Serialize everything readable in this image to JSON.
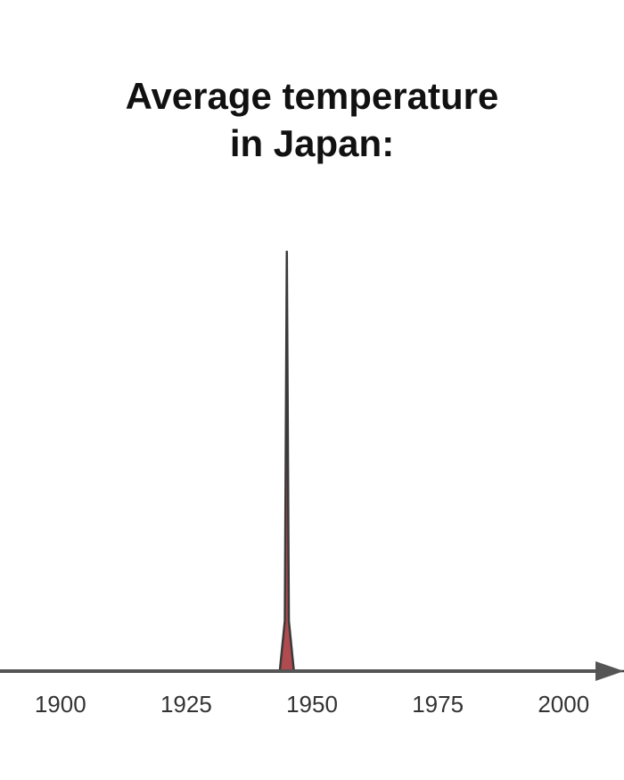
{
  "chart_data": {
    "type": "area",
    "title": [
      "Average temperature",
      "in Japan:"
    ],
    "xlabel": "",
    "ylabel": "",
    "x_ticks": [
      "1900",
      "1925",
      "1950",
      "1975",
      "2000"
    ],
    "x_tick_values": [
      1900,
      1925,
      1950,
      1975,
      2000
    ],
    "xlim": [
      1888,
      2012
    ],
    "ylim": [
      0,
      100
    ],
    "grid": false,
    "legend": "none",
    "series": [
      {
        "x": [
          1888,
          1943.6,
          1944.6,
          1945.0,
          1945.4,
          1946.4,
          2012
        ],
        "values": [
          0,
          0,
          12,
          100,
          12,
          0,
          0
        ],
        "color": "#b04b50"
      }
    ],
    "axis_color": "#555555",
    "spike_outline_color": "#3a3a3a"
  }
}
